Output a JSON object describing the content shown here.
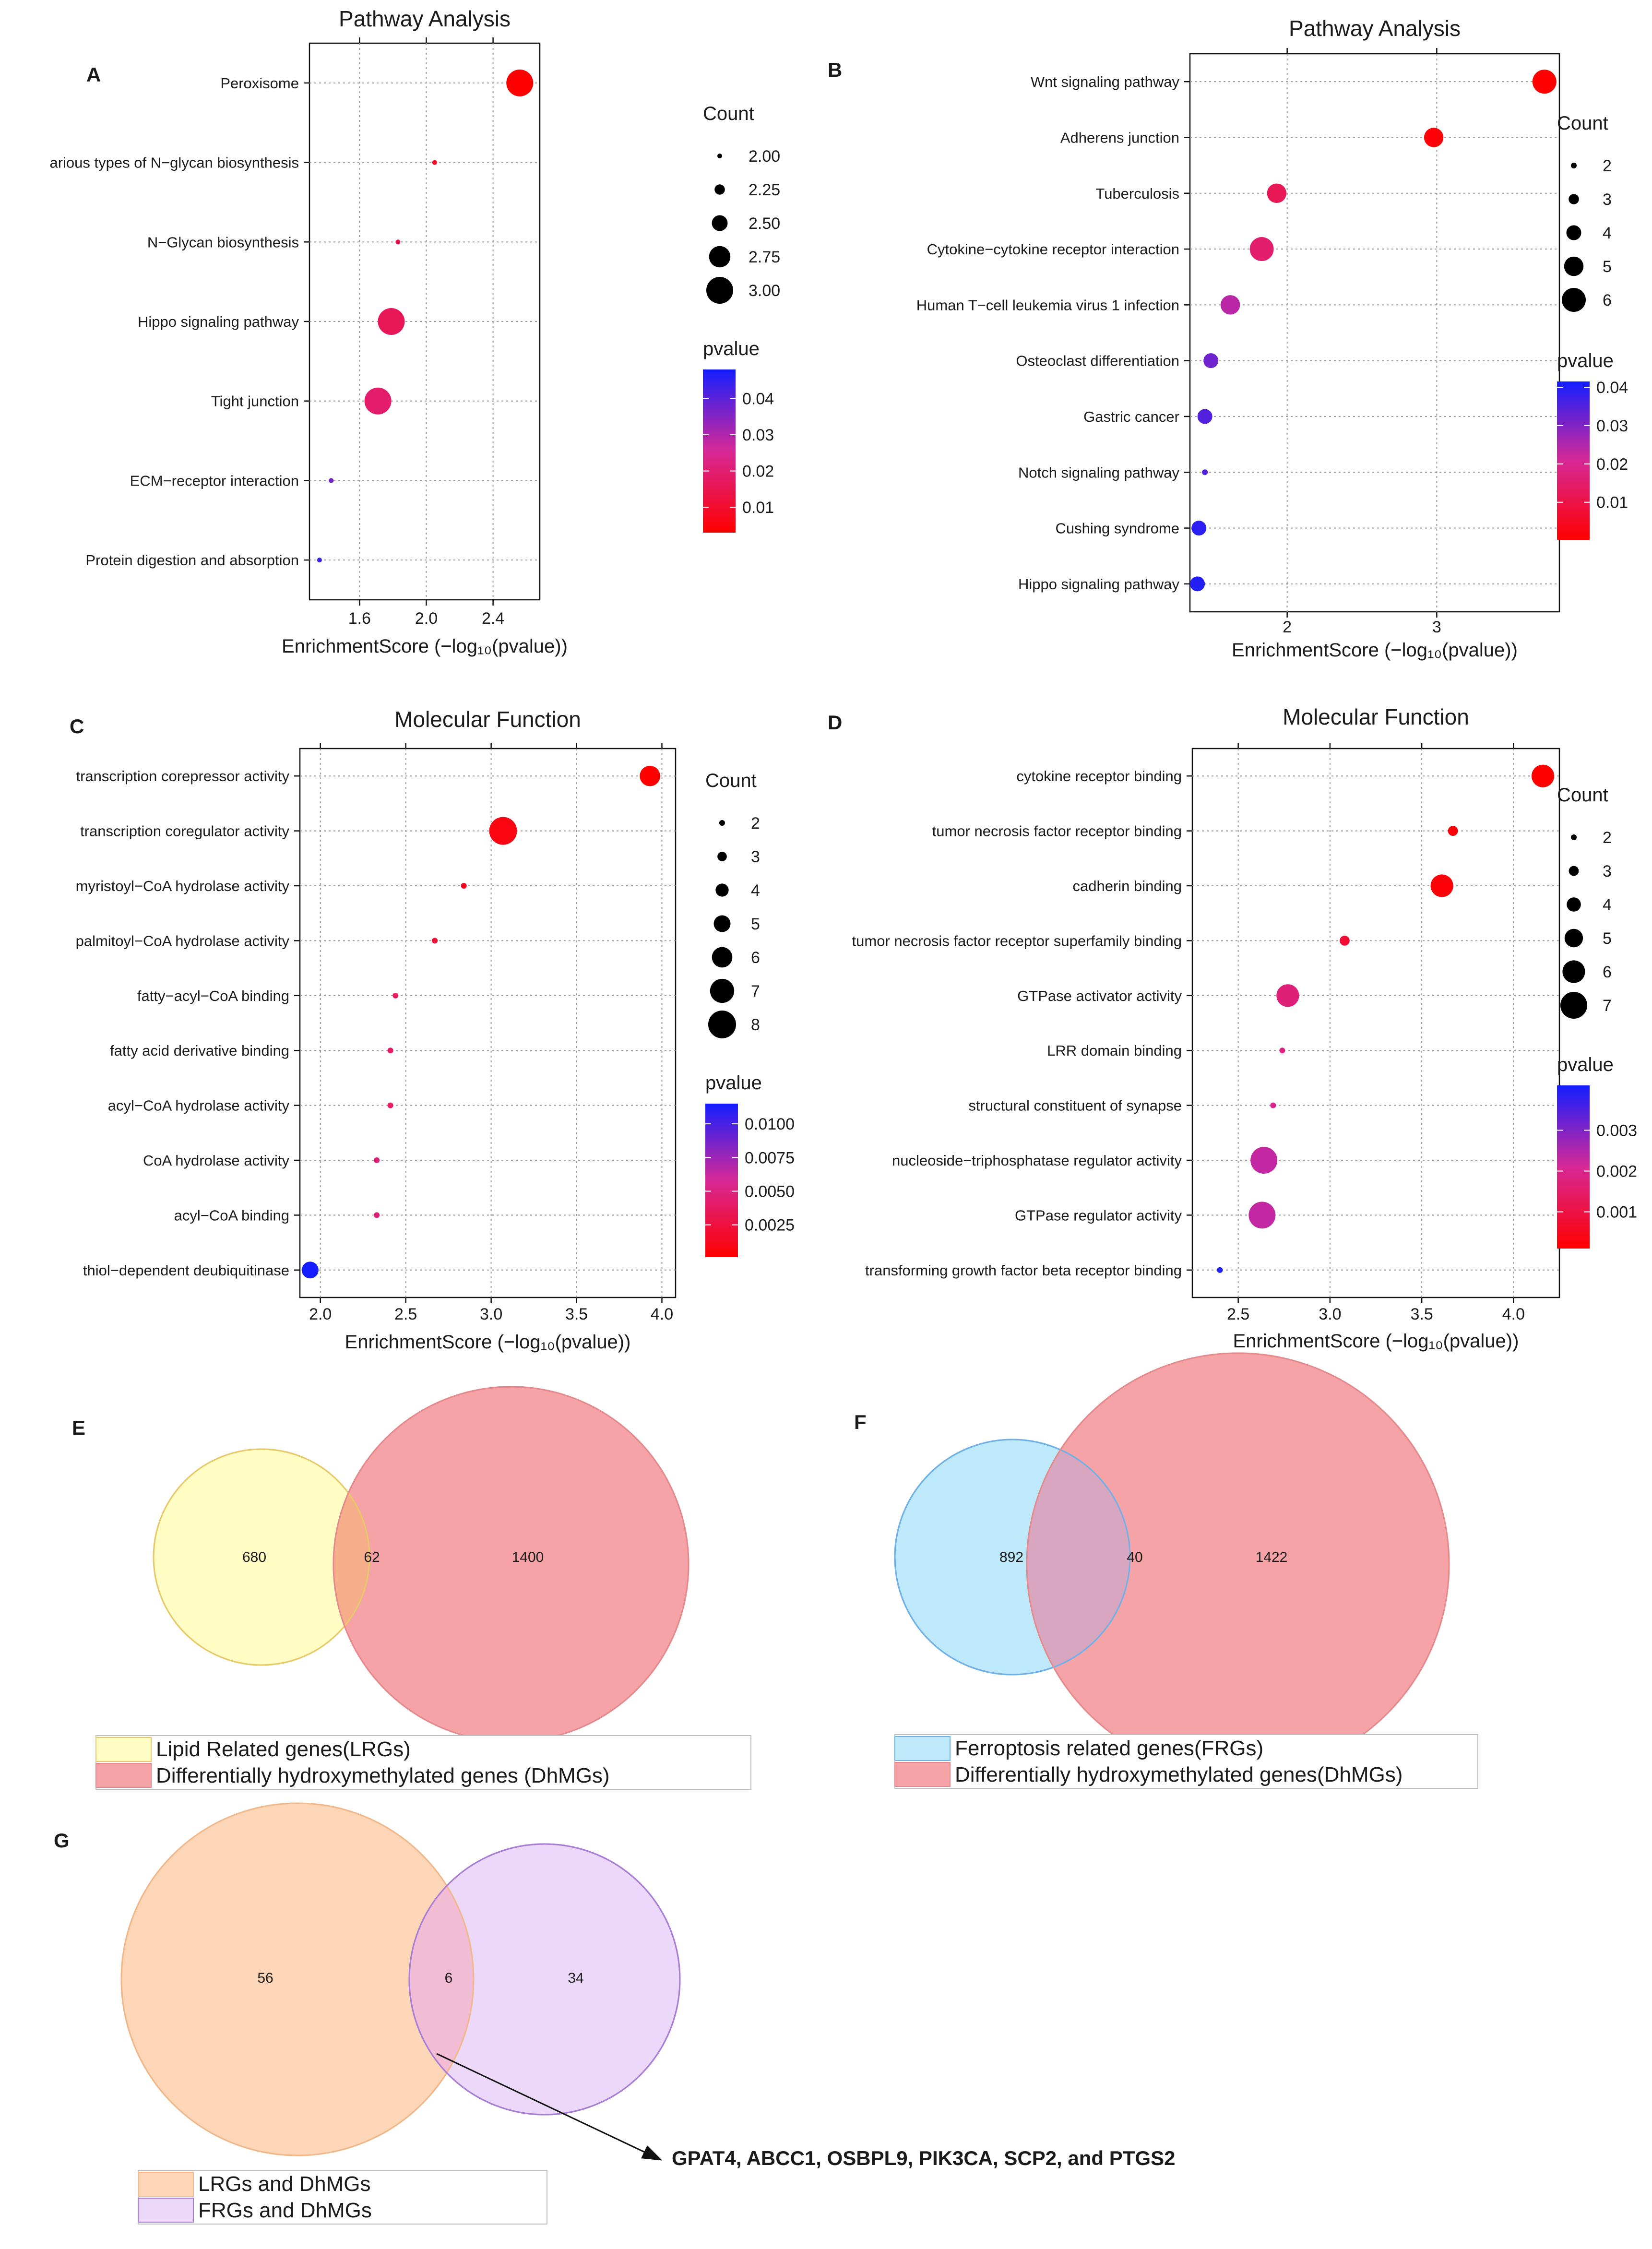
{
  "chart_data": [
    {
      "panel": "A",
      "type": "scatter",
      "title": "Pathway Analysis",
      "xlabel": "EnrichmentScore (−log₁₀(pvalue))",
      "xlim": [
        1.3,
        2.68
      ],
      "xticks": [
        1.6,
        2.0,
        2.4
      ],
      "xticklabels": [
        "1.6",
        "2.0",
        "2.4"
      ],
      "terms": [
        "Peroxisome",
        "arious types of N−glycan biosynthesis",
        "N−Glycan biosynthesis",
        "Hippo signaling pathway",
        "Tight junction",
        "ECM−receptor interaction",
        "Protein digestion and absorption"
      ],
      "x": [
        2.56,
        2.05,
        1.83,
        1.79,
        1.71,
        1.43,
        1.36
      ],
      "count": [
        3,
        2,
        2,
        3,
        3,
        2,
        2
      ],
      "pvalue": [
        0.003,
        0.009,
        0.015,
        0.016,
        0.019,
        0.037,
        0.044
      ],
      "size_legend": {
        "title": "Count",
        "values": [
          2.0,
          2.25,
          2.5,
          2.75,
          3.0
        ],
        "labels": [
          "2.00",
          "2.25",
          "2.50",
          "2.75",
          "3.00"
        ]
      },
      "color_legend": {
        "title": "pvalue",
        "min": 0.003,
        "max": 0.048,
        "ticks": [
          0.01,
          0.02,
          0.03,
          0.04
        ],
        "ticklabels": [
          "0.01",
          "0.02",
          "0.03",
          "0.04"
        ]
      }
    },
    {
      "panel": "B",
      "type": "scatter",
      "title": "Pathway Analysis",
      "xlabel": "EnrichmentScore (−log₁₀(pvalue))",
      "xlim": [
        1.35,
        3.82
      ],
      "xticks": [
        2,
        3
      ],
      "xticklabels": [
        "2",
        "3"
      ],
      "terms": [
        "Wnt signaling pathway",
        "Adherens junction",
        "Tuberculosis",
        "Cytokine−cytokine receptor interaction",
        "Human T−cell leukemia virus 1 infection",
        "Osteoclast differentiation",
        "Gastric cancer",
        "Notch signaling pathway",
        "Cushing syndrome",
        "Hippo signaling pathway"
      ],
      "x": [
        3.72,
        2.98,
        1.93,
        1.83,
        1.62,
        1.49,
        1.45,
        1.45,
        1.41,
        1.4
      ],
      "count": [
        6,
        5,
        5,
        6,
        5,
        4,
        4,
        2,
        4,
        4
      ],
      "pvalue": [
        0.0002,
        0.001,
        0.012,
        0.015,
        0.024,
        0.032,
        0.035,
        0.035,
        0.039,
        0.04
      ],
      "size_legend": {
        "title": "Count",
        "values": [
          2,
          3,
          4,
          5,
          6
        ],
        "labels": [
          "2",
          "3",
          "4",
          "5",
          "6"
        ]
      },
      "color_legend": {
        "title": "pvalue",
        "min": 0.0002,
        "max": 0.0415,
        "ticks": [
          0.01,
          0.02,
          0.03,
          0.04
        ],
        "ticklabels": [
          "0.01",
          "0.02",
          "0.03",
          "0.04"
        ]
      }
    },
    {
      "panel": "C",
      "type": "scatter",
      "title": "Molecular Function",
      "xlabel": "EnrichmentScore (−log₁₀(pvalue))",
      "xlim": [
        1.88,
        4.08
      ],
      "xticks": [
        2.0,
        2.5,
        3.0,
        3.5,
        4.0
      ],
      "xticklabels": [
        "2.0",
        "2.5",
        "3.0",
        "3.5",
        "4.0"
      ],
      "terms": [
        "transcription corepressor activity",
        "transcription coregulator activity",
        "myristoyl−CoA hydrolase activity",
        "palmitoyl−CoA hydrolase activity",
        "fatty−acyl−CoA binding",
        "fatty acid derivative binding",
        "acyl−CoA hydrolase activity",
        "CoA hydrolase activity",
        "acyl−CoA binding",
        "thiol−dependent deubiquitinase"
      ],
      "x": [
        3.93,
        3.07,
        2.84,
        2.67,
        2.44,
        2.41,
        2.41,
        2.33,
        2.33,
        1.94
      ],
      "count": [
        6,
        8,
        2,
        2,
        2,
        2,
        2,
        2,
        2,
        5
      ],
      "pvalue": [
        0.0001,
        0.0008,
        0.0014,
        0.0021,
        0.0036,
        0.0039,
        0.0039,
        0.0047,
        0.0047,
        0.0115
      ],
      "size_legend": {
        "title": "Count",
        "values": [
          2,
          3,
          4,
          5,
          6,
          7,
          8
        ],
        "labels": [
          "2",
          "3",
          "4",
          "5",
          "6",
          "7",
          "8"
        ]
      },
      "color_legend": {
        "title": "pvalue",
        "min": 0.0001,
        "max": 0.0115,
        "ticks": [
          0.0025,
          0.005,
          0.0075,
          0.01
        ],
        "ticklabels": [
          "0.0025",
          "0.0050",
          "0.0075",
          "0.0100"
        ]
      }
    },
    {
      "panel": "D",
      "type": "scatter",
      "title": "Molecular Function",
      "xlabel": "EnrichmentScore (−log₁₀(pvalue))",
      "xlim": [
        2.25,
        4.25
      ],
      "xticks": [
        2.5,
        3.0,
        3.5,
        4.0
      ],
      "xticklabels": [
        "2.5",
        "3.0",
        "3.5",
        "4.0"
      ],
      "terms": [
        "cytokine receptor binding",
        "tumor necrosis factor receptor binding",
        "cadherin binding",
        "tumor necrosis factor receptor superfamily binding",
        "GTPase activator activity",
        "LRR domain binding",
        "structural constituent of synapse",
        "nucleoside−triphosphatase regulator activity",
        "GTPase regulator activity",
        "transforming growth factor beta receptor binding"
      ],
      "x": [
        4.16,
        3.67,
        3.61,
        3.08,
        2.77,
        2.74,
        2.69,
        2.64,
        2.63,
        2.4
      ],
      "count": [
        6,
        3,
        6,
        3,
        6,
        2,
        2,
        7,
        7,
        2
      ],
      "pvalue": [
        0.0001,
        0.0002,
        0.0002,
        0.0008,
        0.0017,
        0.0018,
        0.002,
        0.0023,
        0.0023,
        0.004
      ],
      "size_legend": {
        "title": "Count",
        "values": [
          2,
          3,
          4,
          5,
          6,
          7
        ],
        "labels": [
          "2",
          "3",
          "4",
          "5",
          "6",
          "7"
        ]
      },
      "color_legend": {
        "title": "pvalue",
        "min": 0.0001,
        "max": 0.0041,
        "ticks": [
          0.001,
          0.002,
          0.003
        ],
        "ticklabels": [
          "0.001",
          "0.002",
          "0.003"
        ]
      }
    }
  ],
  "venns": [
    {
      "panel": "E",
      "left_count": "680",
      "overlap_count": "62",
      "right_count": "1400",
      "legend": [
        "Lipid Related genes(LRGs)",
        "Differentially hydroxymethylated genes (DhMGs)"
      ],
      "colors": {
        "left_fill": "#fffdc4",
        "left_stroke": "#e8c96a",
        "right_fill": "#f5a3a6",
        "right_stroke": "#e58a8c",
        "overlap_fill": "#f6ae8a"
      }
    },
    {
      "panel": "F",
      "left_count": "892",
      "overlap_count": "40",
      "right_count": "1422",
      "legend": [
        "Ferroptosis related genes(FRGs)",
        "Differentially hydroxymethylated genes(DhMGs)"
      ],
      "colors": {
        "left_fill": "#bde9fb",
        "left_stroke": "#6fb0e8",
        "right_fill": "#f5a3a6",
        "right_stroke": "#e58a8c",
        "overlap_fill": "#d9a6c0"
      }
    },
    {
      "panel": "G",
      "left_count": "56",
      "overlap_count": "6",
      "right_count": "34",
      "legend": [
        "LRGs and DhMGs",
        "FRGs and DhMGs"
      ],
      "annotation": "GPAT4, ABCC1, OSBPL9, PIK3CA, SCP2, and PTGS2",
      "colors": {
        "left_fill": "#fcd6b6",
        "left_stroke": "#f0b88a",
        "right_fill": "#ecd9f9",
        "right_stroke": "#a77dd6",
        "overlap_fill": "#f2bcd4"
      }
    }
  ]
}
